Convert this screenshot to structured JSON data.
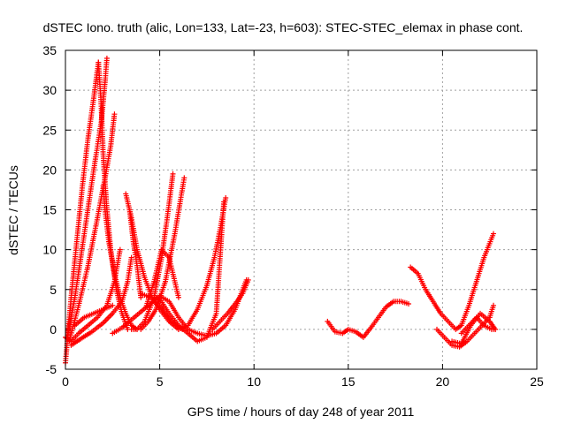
{
  "chart_data": {
    "type": "scatter",
    "title": "dSTEC Iono. truth (alic, Lon=133, Lat=-23, h=603): STEC-STEC_elemax in phase cont.",
    "xlabel": "GPS time / hours of day 248 of year 2011",
    "ylabel": "dSTEC  / TECUs",
    "xlim": [
      0,
      25
    ],
    "ylim": [
      -5,
      35
    ],
    "x_ticks": [
      0,
      5,
      10,
      15,
      20,
      25
    ],
    "y_ticks": [
      -5,
      0,
      5,
      10,
      15,
      20,
      25,
      30,
      35
    ],
    "grid": true,
    "marker": "+",
    "color": "#ff0000",
    "series": [
      {
        "x": [
          0.0,
          0.3,
          0.6,
          0.9,
          1.2,
          1.5,
          1.75
        ],
        "y": [
          -4.2,
          4,
          11,
          18,
          24,
          29,
          33.5
        ]
      },
      {
        "x": [
          1.75,
          1.9,
          2.0,
          2.2,
          2.4,
          2.7,
          3.0,
          3.3
        ],
        "y": [
          33.5,
          28,
          22,
          15,
          10,
          5,
          2,
          0
        ]
      },
      {
        "x": [
          0.1,
          0.5,
          1.0,
          1.5,
          1.9,
          2.1,
          2.2
        ],
        "y": [
          -1,
          4,
          12,
          20,
          26,
          31,
          34
        ]
      },
      {
        "x": [
          0.2,
          0.7,
          1.2,
          1.7,
          2.1,
          2.4,
          2.6
        ],
        "y": [
          -1.5,
          3,
          8,
          14,
          19,
          23,
          27
        ]
      },
      {
        "x": [
          2.0,
          2.1,
          2.3,
          2.6,
          2.9,
          3.2,
          3.5,
          3.8
        ],
        "y": [
          18,
          15,
          11,
          7,
          4,
          2,
          0.5,
          0
        ]
      },
      {
        "x": [
          0.0,
          0.3,
          0.7,
          1.2,
          1.7,
          2.2,
          2.6,
          2.9
        ],
        "y": [
          -1,
          -1.5,
          -0.5,
          0.5,
          1.5,
          3,
          6,
          10
        ]
      },
      {
        "x": [
          0.3,
          0.8,
          1.4,
          2.0,
          2.5,
          3.0,
          3.3,
          3.5
        ],
        "y": [
          -2,
          -1.2,
          -0.3,
          0.8,
          2,
          3.5,
          6,
          9
        ]
      },
      {
        "x": [
          0.5,
          1.0,
          1.5,
          2.0,
          2.5
        ],
        "y": [
          0.5,
          1.5,
          2,
          2.5,
          3
        ]
      },
      {
        "x": [
          3.2,
          3.5,
          3.8,
          4.2,
          4.6,
          5.0,
          5.5,
          6.0
        ],
        "y": [
          17,
          14,
          10,
          6.5,
          4,
          2.5,
          1,
          0
        ]
      },
      {
        "x": [
          3.4,
          3.6,
          3.8,
          4.0
        ],
        "y": [
          15,
          11,
          8,
          4
        ]
      },
      {
        "x": [
          3.5,
          3.8,
          4.2,
          4.7,
          5.1,
          5.4,
          5.7
        ],
        "y": [
          0,
          0,
          1,
          4,
          9,
          14,
          19.5
        ]
      },
      {
        "x": [
          4.0,
          4.4,
          4.8,
          5.3,
          5.8,
          6.3
        ],
        "y": [
          0,
          1,
          2.5,
          6,
          12,
          19
        ]
      },
      {
        "x": [
          4.3,
          4.7,
          5.1,
          5.5,
          6.0
        ],
        "y": [
          3,
          6,
          10,
          9,
          4
        ]
      },
      {
        "x": [
          5.0,
          5.3,
          5.6,
          5.9,
          6.2
        ],
        "y": [
          3,
          2,
          1,
          0.5,
          0
        ]
      },
      {
        "x": [
          2.5,
          3.0,
          3.5,
          4.0,
          4.5,
          5.0,
          5.5,
          6.0,
          6.5,
          7.0,
          7.5,
          8.0,
          8.5,
          9.0,
          9.6
        ],
        "y": [
          -0.5,
          0.2,
          1.2,
          2.2,
          3.2,
          4.2,
          3.5,
          1.5,
          0,
          -0.5,
          -0.8,
          -0.5,
          0.5,
          2.5,
          6.2
        ]
      },
      {
        "x": [
          4.0,
          4.5,
          5.0,
          5.5,
          6.0,
          6.5,
          7.0,
          7.5,
          8.0,
          8.4
        ],
        "y": [
          4.5,
          4,
          3.8,
          2,
          0.5,
          -0.5,
          -1.5,
          -1,
          2,
          16
        ]
      },
      {
        "x": [
          6.0,
          6.5,
          7.0,
          7.5,
          7.9,
          8.2,
          8.5
        ],
        "y": [
          0,
          0.5,
          2.5,
          5.5,
          9,
          12.5,
          16.5
        ]
      },
      {
        "x": [
          7.8,
          8.2,
          8.6,
          9.0,
          9.4,
          9.7
        ],
        "y": [
          0,
          1,
          2,
          3.2,
          4.5,
          6.2
        ]
      },
      {
        "x": [
          13.9,
          14.3,
          14.7,
          15.0,
          15.4,
          15.8,
          16.2,
          16.6,
          17.0,
          17.4,
          17.8,
          18.2
        ],
        "y": [
          1,
          -0.3,
          -0.5,
          0,
          -0.3,
          -1,
          0.2,
          1.5,
          2.8,
          3.5,
          3.5,
          3.2
        ]
      },
      {
        "x": [
          18.3,
          18.7,
          19.1,
          19.5,
          19.9,
          20.3,
          20.7,
          21.0,
          21.4,
          21.8,
          22.2,
          22.7
        ],
        "y": [
          7.8,
          7,
          5,
          3.5,
          2,
          1,
          0,
          0.5,
          3,
          6,
          9,
          12
        ]
      },
      {
        "x": [
          19.7,
          20.1,
          20.5,
          20.9,
          21.3,
          21.7,
          22.1,
          22.5,
          22.7
        ],
        "y": [
          0,
          -1,
          -2,
          -2.2,
          -1.5,
          -0.5,
          0.5,
          1.5,
          3
        ]
      },
      {
        "x": [
          20.5,
          21.0,
          21.5,
          22.0,
          22.5,
          22.8
        ],
        "y": [
          -1.5,
          -1.8,
          0.5,
          2,
          1,
          0
        ]
      },
      {
        "x": [
          21.0,
          21.4,
          21.8,
          22.2,
          22.6,
          22.8
        ],
        "y": [
          -0.5,
          0.5,
          1.5,
          0.5,
          0,
          0
        ]
      }
    ]
  }
}
